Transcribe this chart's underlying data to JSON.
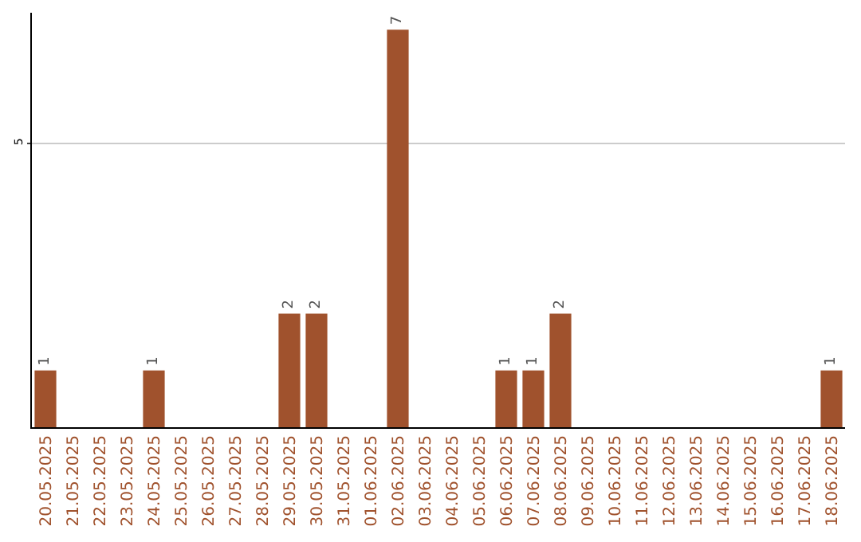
{
  "chart_data": {
    "type": "bar",
    "categories": [
      "20.05.2025",
      "21.05.2025",
      "22.05.2025",
      "23.05.2025",
      "24.05.2025",
      "25.05.2025",
      "26.05.2025",
      "27.05.2025",
      "28.05.2025",
      "29.05.2025",
      "30.05.2025",
      "31.05.2025",
      "01.06.2025",
      "02.06.2025",
      "03.06.2025",
      "04.06.2025",
      "05.06.2025",
      "06.06.2025",
      "07.06.2025",
      "08.06.2025",
      "09.06.2025",
      "10.06.2025",
      "11.06.2025",
      "12.06.2025",
      "13.06.2025",
      "14.06.2025",
      "15.06.2025",
      "16.06.2025",
      "17.06.2025",
      "18.06.2025"
    ],
    "values": [
      1,
      0,
      0,
      0,
      1,
      0,
      0,
      0,
      0,
      2,
      2,
      0,
      0,
      7,
      0,
      0,
      0,
      1,
      1,
      2,
      0,
      0,
      0,
      0,
      0,
      0,
      0,
      0,
      0,
      1
    ],
    "color": "#a0522d",
    "value_labels": [
      "1",
      null,
      null,
      null,
      "1",
      null,
      null,
      null,
      null,
      "2",
      "2",
      null,
      null,
      "7",
      null,
      null,
      null,
      "1",
      "1",
      "2",
      null,
      null,
      null,
      null,
      null,
      null,
      null,
      null,
      null,
      "1"
    ],
    "ylim": [
      0,
      7.3
    ],
    "yticks": [
      5
    ],
    "grid": "y",
    "legend": false
  }
}
